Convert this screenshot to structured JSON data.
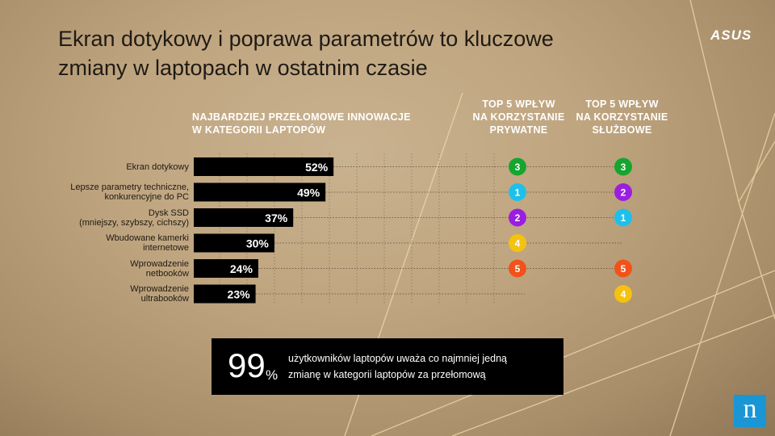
{
  "title": {
    "line1": "Ekran dotykowy i poprawa parametrów to kluczowe",
    "line2": "zmiany w laptopach w ostatnim czasie"
  },
  "brand_logo": "ASUS",
  "headers": {
    "main": [
      "NAJBARDZIEJ PRZEŁOMOWE INNOWACJE",
      "W KATEGORII LAPTOPÓW"
    ],
    "col_private": [
      "TOP 5 WPŁYW",
      "NA KORZYSTANIE",
      "PRYWATNE"
    ],
    "col_business": [
      "TOP 5 WPŁYW",
      "NA KORZYSTANIE",
      "SŁUŻBOWE"
    ]
  },
  "chart_data": {
    "type": "bar",
    "orientation": "horizontal",
    "categories": [
      [
        "Ekran dotykowy"
      ],
      [
        "Lepsze parametry techniczne,",
        "konkurencyjne do PC"
      ],
      [
        "Dysk SSD",
        "(mniejszy, szybszy, cichszy)"
      ],
      [
        "Wbudowane kamerki",
        "internetowe"
      ],
      [
        "Wprowadzenie",
        "netbooków"
      ],
      [
        "Wprowadzenie",
        "ultrabooków"
      ]
    ],
    "values": [
      52,
      49,
      37,
      30,
      24,
      23
    ],
    "value_labels": [
      "52%",
      "49%",
      "37%",
      "30%",
      "24%",
      "23%"
    ],
    "unit": "%",
    "xlim": [
      0,
      100
    ],
    "grid": "vertical dotted",
    "rank_private": [
      3,
      1,
      2,
      4,
      5,
      null
    ],
    "rank_business": [
      3,
      2,
      1,
      null,
      5,
      4
    ]
  },
  "rank_colors": {
    "1": "#1ec0ea",
    "2": "#9b1ee0",
    "3": "#16a52f",
    "4": "#f4c20f",
    "5": "#f2521a"
  },
  "bar_color": "#000000",
  "callout": {
    "number": "99",
    "percent": "%",
    "line1": "użytkowników laptopów uważa co najmniej jedną",
    "line2": "zmianę w kategorii laptopów za przełomową"
  },
  "source_logo": "n"
}
